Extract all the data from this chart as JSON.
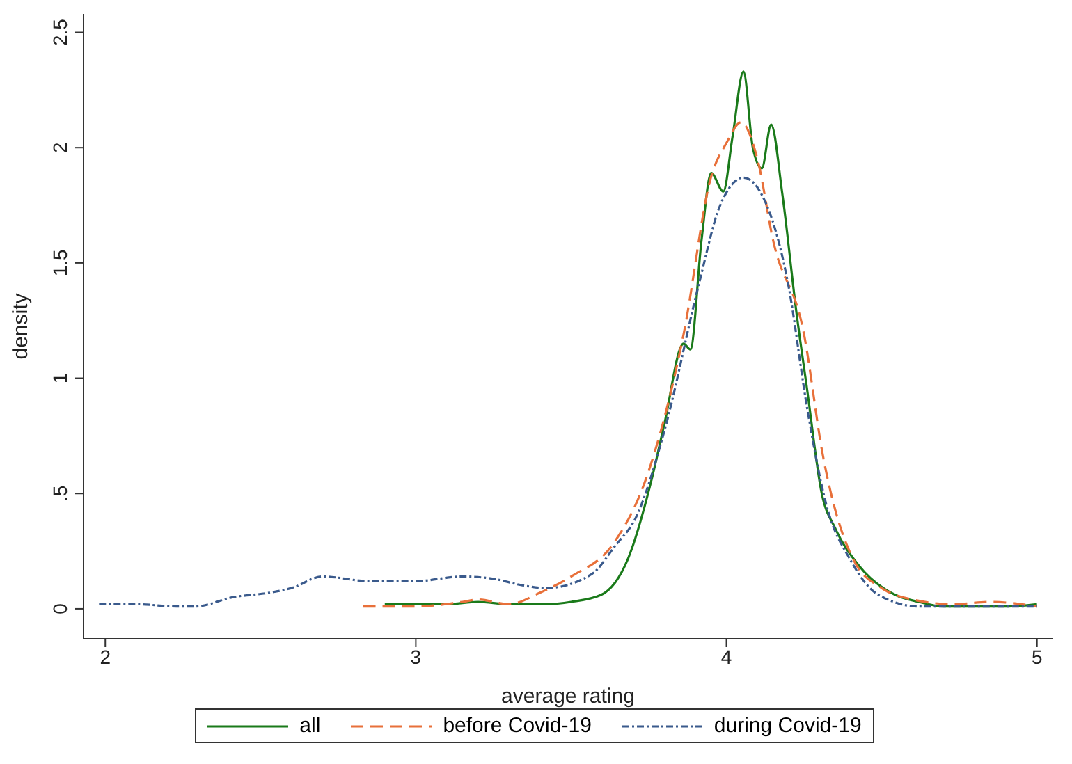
{
  "chart_data": {
    "type": "line",
    "xlabel": "average rating",
    "ylabel": "density",
    "xlim": [
      1.93,
      5.05
    ],
    "ylim": [
      -0.13,
      2.58
    ],
    "xticks": [
      2,
      3,
      4,
      5
    ],
    "yticks": [
      0,
      {
        "value": 0.5,
        "label": ".5"
      },
      1,
      1.5,
      2,
      2.5
    ],
    "grid": false,
    "legend": "bottom",
    "marker": "none",
    "series": [
      {
        "name": "all",
        "color": "#1a7a1a",
        "line_style": "solid",
        "x": [
          2.9,
          3.0,
          3.1,
          3.2,
          3.3,
          3.42,
          3.5,
          3.596,
          3.684,
          3.759,
          3.8,
          3.862,
          3.884,
          3.92,
          3.951,
          3.99,
          4.02,
          4.055,
          4.085,
          4.114,
          4.144,
          4.18,
          4.225,
          4.26,
          4.307,
          4.35,
          4.425,
          4.544,
          4.62,
          4.7,
          4.8,
          4.9,
          5.0
        ],
        "values": [
          0.02,
          0.02,
          0.02,
          0.03,
          0.02,
          0.02,
          0.03,
          0.06,
          0.22,
          0.56,
          0.8,
          1.15,
          1.125,
          1.6,
          1.89,
          1.81,
          2.05,
          2.33,
          2.0,
          1.91,
          2.1,
          1.8,
          1.29,
          0.95,
          0.5,
          0.35,
          0.19,
          0.06,
          0.03,
          0.01,
          0.01,
          0.01,
          0.02
        ]
      },
      {
        "name": "before Covid-19",
        "color": "#e8703a",
        "line_style": "dashed",
        "x": [
          2.83,
          3.0,
          3.15,
          3.2,
          3.3,
          3.4,
          3.5,
          3.64,
          3.74,
          3.862,
          3.951,
          4.0,
          4.047,
          4.1,
          4.15,
          4.25,
          4.31,
          4.41,
          4.5,
          4.6,
          4.73,
          4.85,
          5.0
        ],
        "values": [
          0.01,
          0.01,
          0.03,
          0.04,
          0.02,
          0.07,
          0.14,
          0.29,
          0.56,
          1.19,
          1.875,
          2.02,
          2.11,
          1.95,
          1.6,
          1.19,
          0.67,
          0.21,
          0.09,
          0.04,
          0.02,
          0.03,
          0.01
        ]
      },
      {
        "name": "during Covid-19",
        "color": "#3a5a8c",
        "line_style": "dashdot",
        "x": [
          1.98,
          2.1,
          2.23,
          2.29,
          2.41,
          2.53,
          2.6,
          2.7,
          2.85,
          3.0,
          3.15,
          3.25,
          3.35,
          3.42,
          3.566,
          3.64,
          3.71,
          3.8,
          3.91,
          3.98,
          4.055,
          4.13,
          4.2,
          4.26,
          4.32,
          4.4,
          4.49,
          4.62,
          4.8,
          5.0
        ],
        "values": [
          0.02,
          0.02,
          0.01,
          0.01,
          0.05,
          0.07,
          0.09,
          0.14,
          0.12,
          0.12,
          0.14,
          0.13,
          0.1,
          0.09,
          0.15,
          0.27,
          0.4,
          0.77,
          1.4,
          1.75,
          1.87,
          1.75,
          1.4,
          0.87,
          0.46,
          0.21,
          0.06,
          0.01,
          0.01,
          0.01
        ]
      }
    ]
  }
}
